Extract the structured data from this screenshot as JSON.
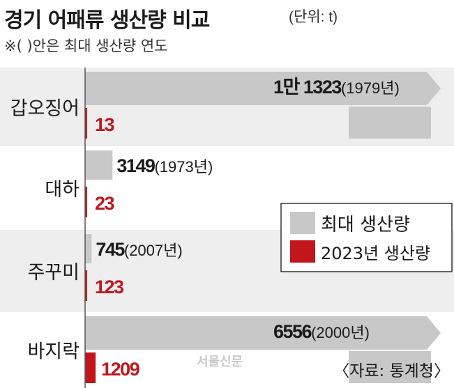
{
  "title": "경기 어패류 생산량 비교",
  "unit": "(단위: t)",
  "note": "※(  )안은 최대 생산량 연도",
  "source": "〈자료: 통계청〉",
  "watermark": "서울신문",
  "colors": {
    "max": "#c8c8c8",
    "y2023": "#c2161c",
    "band": "#eeeeee",
    "text": "#1a1a1a"
  },
  "chart_data": {
    "type": "bar",
    "categories": [
      "갑오징어",
      "대하",
      "주꾸미",
      "바지락"
    ],
    "series": [
      {
        "name": "최대 생산량",
        "values": [
          11323,
          3149,
          745,
          6556
        ],
        "labels": [
          "1만 1323",
          "3149",
          "745",
          "6556"
        ],
        "years": [
          "(1979년)",
          "(1973년)",
          "(2007년)",
          "(2000년)"
        ]
      },
      {
        "name": "2023년 생산량",
        "values": [
          13,
          23,
          123,
          1209
        ],
        "labels": [
          "13",
          "23",
          "123",
          "1209"
        ]
      }
    ],
    "legend": [
      "최대 생산량",
      "2023년 생산량"
    ],
    "legend_position": "right"
  }
}
